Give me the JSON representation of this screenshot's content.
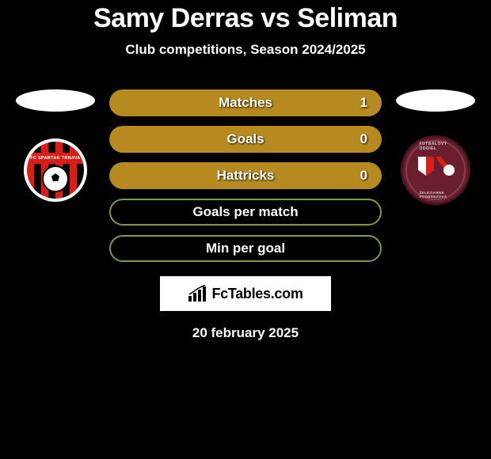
{
  "header": {
    "title": "Samy Derras vs Seliman",
    "subtitle": "Club competitions, Season 2024/2025"
  },
  "colors": {
    "left_accent": "#d91e18",
    "right_accent": "#b68a1f",
    "neutral_outline": "#7d9a45",
    "background": "#000000",
    "text": "#ffffff"
  },
  "left_crest": {
    "banner_text": "FC SPARTAK TRNAVA",
    "stripe_a": "#d91e18",
    "stripe_b": "#000000"
  },
  "right_crest": {
    "top_text": "FUTBALOVÝ ODDIEL",
    "bottom_text": "ŽELEZIARNE PODBREZOVÁ",
    "bg": "#6b1e2e"
  },
  "stats": [
    {
      "label": "Matches",
      "left_value": "",
      "right_value": "1",
      "mode": "fill",
      "fill_side": "right",
      "fill_color": "#b68a1f",
      "fill_pct": 100
    },
    {
      "label": "Goals",
      "left_value": "",
      "right_value": "0",
      "mode": "fill",
      "fill_side": "right",
      "fill_color": "#b68a1f",
      "fill_pct": 100
    },
    {
      "label": "Hattricks",
      "left_value": "",
      "right_value": "0",
      "mode": "fill",
      "fill_side": "right",
      "fill_color": "#b68a1f",
      "fill_pct": 100
    },
    {
      "label": "Goals per match",
      "left_value": "",
      "right_value": "",
      "mode": "outline",
      "outline_color": "#7d9a45"
    },
    {
      "label": "Min per goal",
      "left_value": "",
      "right_value": "",
      "mode": "outline",
      "outline_color": "#7d9a45"
    }
  ],
  "brand": {
    "text": "FcTables.com"
  },
  "footer": {
    "date": "20 february 2025"
  }
}
